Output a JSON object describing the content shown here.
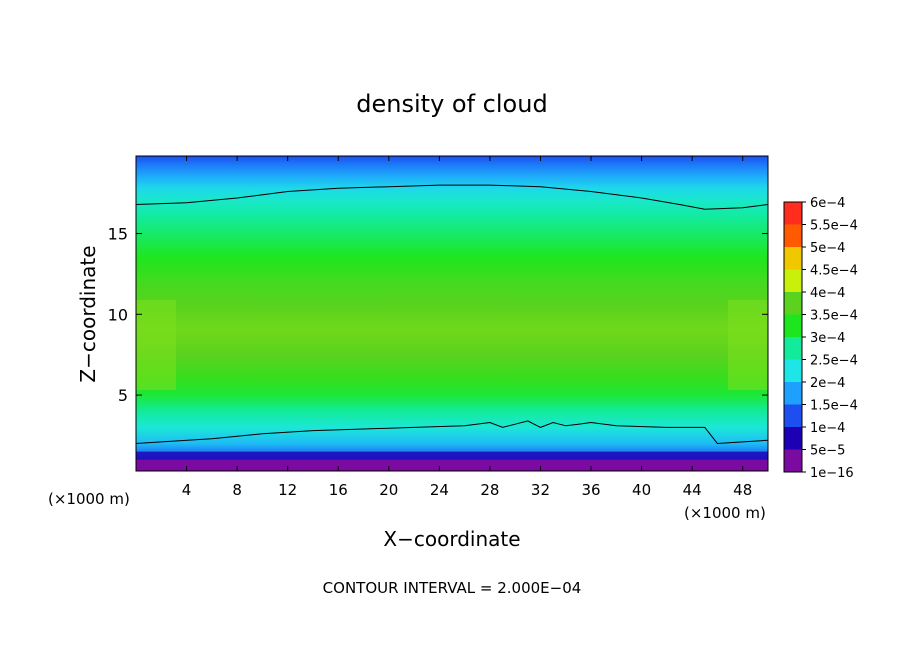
{
  "chart_data": {
    "type": "heatmap",
    "title": "density of cloud",
    "xlabel": "X−coordinate",
    "ylabel": "Z−coordinate",
    "x_unit_left": "(×1000 m)",
    "x_unit_right": "(×1000 m)",
    "xlim": [
      0,
      50
    ],
    "ylim": [
      0.3,
      19.8
    ],
    "x_ticks": [
      4,
      8,
      12,
      16,
      20,
      24,
      28,
      32,
      36,
      40,
      44,
      48
    ],
    "x_tick_labels": [
      "4",
      "8",
      "12",
      "16",
      "20",
      "24",
      "28",
      "32",
      "36",
      "40",
      "44",
      "48"
    ],
    "y_ticks": [
      5,
      10,
      15
    ],
    "y_tick_labels": [
      "5",
      "10",
      "15"
    ],
    "colorbar": {
      "levels": [
        "1e−16",
        "5e−5",
        "1e−4",
        "1.5e−4",
        "2e−4",
        "2.5e−4",
        "3e−4",
        "3.5e−4",
        "4e−4",
        "4.5e−4",
        "5e−4",
        "5.5e−4",
        "6e−4"
      ],
      "colors": [
        "#7a0aa0",
        "#1e00b4",
        "#1c4ef0",
        "#1ea0ff",
        "#1ee6e6",
        "#12eb9b",
        "#1ee61e",
        "#5ad21e",
        "#c8f00a",
        "#f0c800",
        "#ff5a00",
        "#ff2d1e",
        "#ff9696"
      ]
    },
    "profile_z": [
      0.3,
      0.6,
      1.2,
      2.0,
      3.0,
      4.0,
      5.0,
      6.0,
      7.5,
      9.0,
      10.5,
      12.0,
      13.5,
      15.0,
      16.0,
      17.0,
      17.8,
      18.5,
      19.2,
      19.8
    ],
    "profile_value": [
      3e-05,
      6e-05,
      0.00011,
      0.00017,
      0.00021,
      0.00025,
      0.00029,
      0.00032,
      0.00035,
      0.00036,
      0.00035,
      0.00033,
      0.0003,
      0.00027,
      0.00025,
      0.00022,
      0.00019,
      0.00016,
      0.00013,
      0.0001
    ],
    "contour_2e-4_top": {
      "x": [
        0,
        4,
        8,
        12,
        16,
        20,
        24,
        28,
        32,
        36,
        40,
        43,
        45,
        48,
        50
      ],
      "z": [
        16.8,
        16.9,
        17.2,
        17.6,
        17.8,
        17.9,
        18.0,
        18.0,
        17.9,
        17.6,
        17.2,
        16.8,
        16.5,
        16.6,
        16.8
      ]
    },
    "contour_2e-4_bottom": {
      "x": [
        0,
        2,
        6,
        10,
        14,
        18,
        22,
        26,
        28,
        29,
        30,
        31,
        32,
        33,
        34,
        35,
        36,
        38,
        42,
        45,
        46,
        48,
        50
      ],
      "z": [
        2.0,
        2.1,
        2.3,
        2.6,
        2.8,
        2.9,
        3.0,
        3.1,
        3.3,
        3.0,
        3.2,
        3.4,
        3.0,
        3.3,
        3.1,
        3.2,
        3.3,
        3.1,
        3.0,
        3.0,
        2.0,
        2.1,
        2.2
      ]
    },
    "footer": "CONTOUR INTERVAL = 2.000E−04"
  }
}
